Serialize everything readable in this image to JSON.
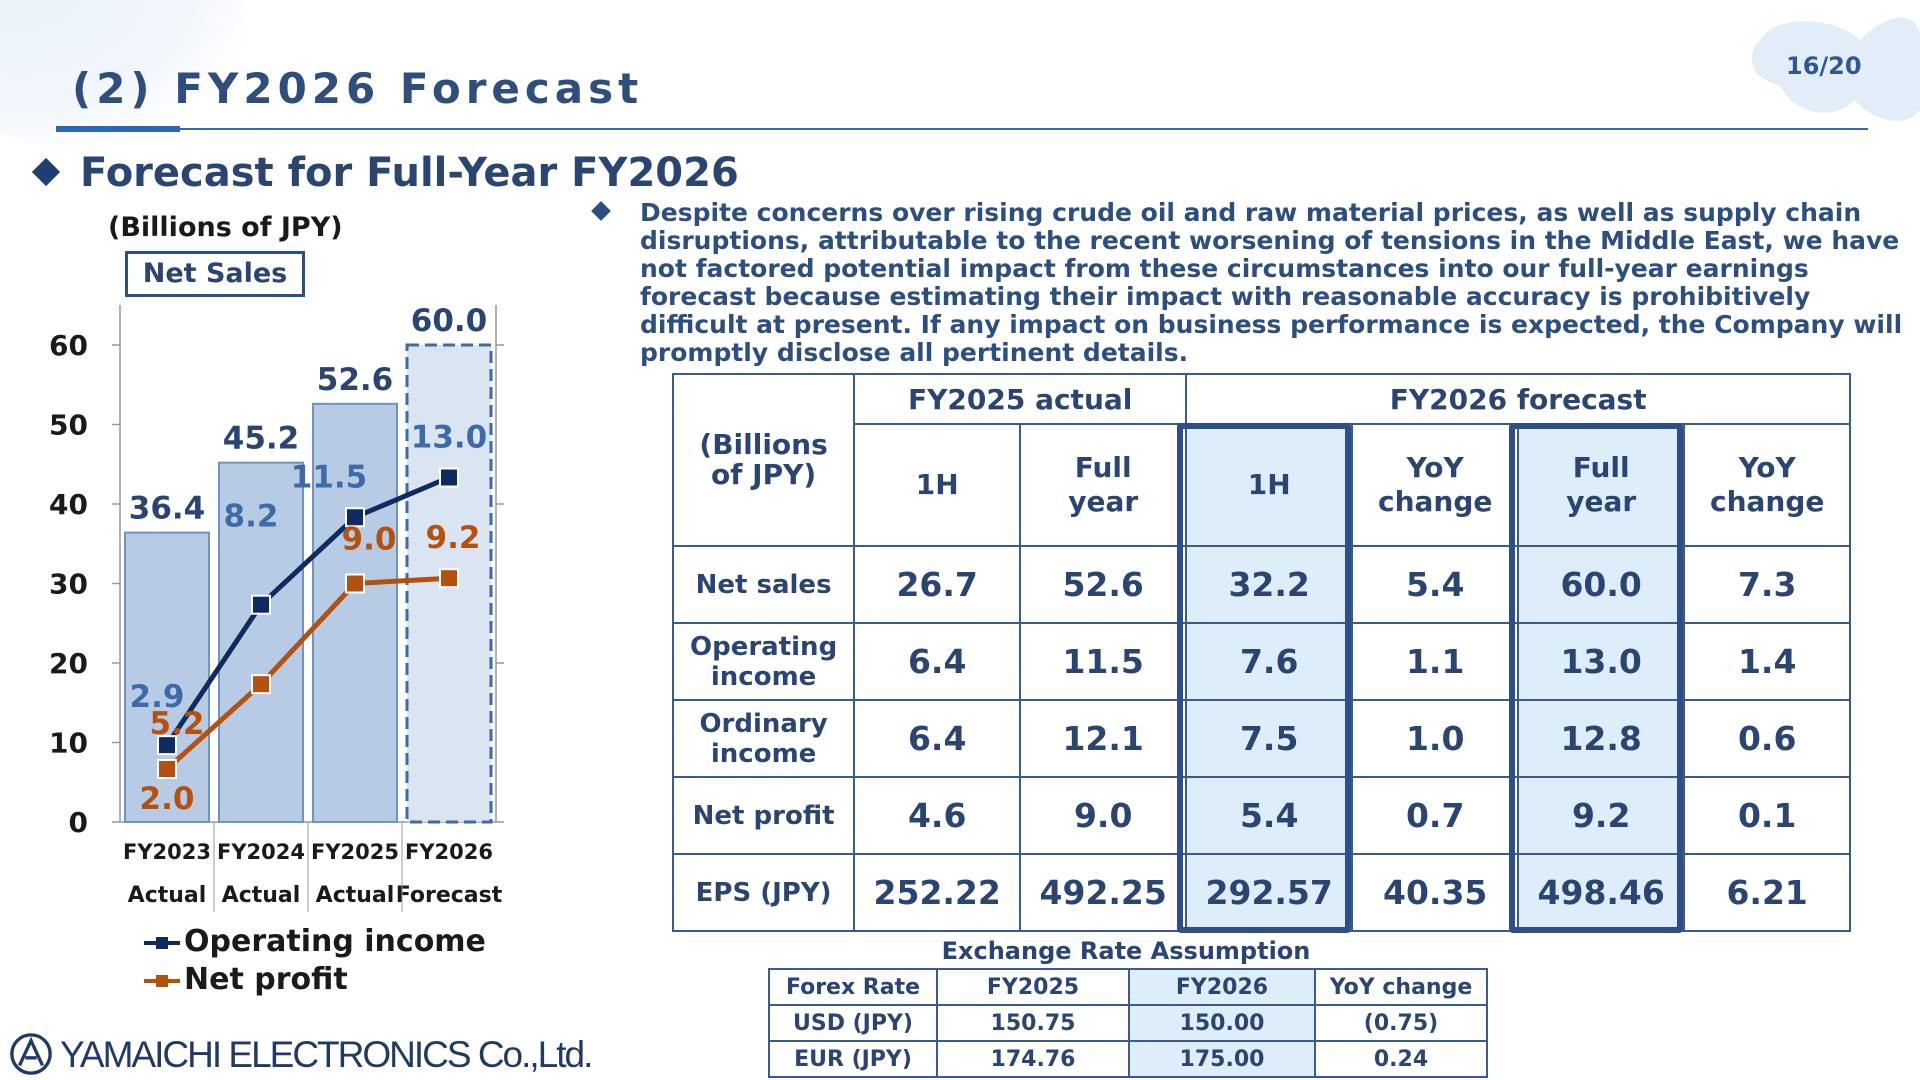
{
  "page": {
    "number": "16/20"
  },
  "header": {
    "title": "(2)  FY2026 Forecast"
  },
  "section": {
    "title": "Forecast for Full-Year FY2026"
  },
  "chart_panel": {
    "units": "(Billions of JPY)",
    "net_sales_label": "Net Sales"
  },
  "chart_data": {
    "type": "bar",
    "categories": [
      "FY2023",
      "FY2024",
      "FY2025",
      "FY2026"
    ],
    "category_sublabels": [
      "Actual",
      "Actual",
      "Actual",
      "Forecast"
    ],
    "ylim": [
      0,
      60
    ],
    "yticks": [
      0,
      10,
      20,
      30,
      40,
      50,
      60
    ],
    "y2lim": [
      0,
      18
    ],
    "y2ticks": [
      0,
      6,
      12,
      18
    ],
    "series": [
      {
        "name": "Net Sales",
        "type": "bar",
        "axis": "left",
        "values": [
          36.4,
          45.2,
          52.6,
          60.0
        ],
        "labels": [
          "36.4",
          "45.2",
          "52.6",
          "60.0"
        ],
        "color": "#b8cbe4",
        "forecast_index": 3
      },
      {
        "name": "Operating income",
        "type": "line",
        "axis": "right",
        "values": [
          2.9,
          8.2,
          11.5,
          13.0
        ],
        "labels": [
          "2.9",
          "8.2",
          "11.5",
          "13.0"
        ],
        "color": "#0f2a5e"
      },
      {
        "name": "Net profit",
        "type": "line",
        "axis": "right",
        "values": [
          2.0,
          5.2,
          9.0,
          9.2
        ],
        "labels": [
          "2.0",
          "5.2",
          "9.0",
          "9.2"
        ],
        "color": "#b5510f"
      }
    ],
    "legend": [
      "-■-Operating income",
      "-■-Net profit"
    ]
  },
  "commentary": "Despite concerns over rising crude oil and raw material prices, as well as supply chain disruptions, attributable to the recent worsening of tensions in the Middle East, we have not factored potential impact from these circumstances into our full-year earnings forecast because estimating their impact with reasonable accuracy is prohibitively difficult at present. If any impact on business performance is expected, the Company will promptly disclose all pertinent details.",
  "forecast_table": {
    "corner": "(Billions of JPY)",
    "group_actual": "FY2025 actual",
    "group_forecast": "FY2026 forecast",
    "columns": [
      "1H",
      "Full year",
      "1H",
      "YoY change",
      "Full year",
      "YoY change"
    ],
    "rows": [
      {
        "label": "Net sales",
        "values": [
          "26.7",
          "52.6",
          "32.2",
          "5.4",
          "60.0",
          "7.3"
        ]
      },
      {
        "label": "Operating income",
        "values": [
          "6.4",
          "11.5",
          "7.6",
          "1.1",
          "13.0",
          "1.4"
        ]
      },
      {
        "label": "Ordinary income",
        "values": [
          "6.4",
          "12.1",
          "7.5",
          "1.0",
          "12.8",
          "0.6"
        ]
      },
      {
        "label": "Net profit",
        "values": [
          "4.6",
          "9.0",
          "5.4",
          "0.7",
          "9.2",
          "0.1"
        ]
      },
      {
        "label": "EPS (JPY)",
        "values": [
          "252.22",
          "492.25",
          "292.57",
          "40.35",
          "498.46",
          "6.21"
        ]
      }
    ]
  },
  "fx_table": {
    "title": "Exchange Rate Assumption",
    "headers": [
      "Forex Rate",
      "FY2025",
      "FY2026",
      "YoY change"
    ],
    "rows": [
      [
        "USD (JPY)",
        "150.75",
        "150.00",
        "(0.75)"
      ],
      [
        "EUR (JPY)",
        "174.76",
        "175.00",
        "0.24"
      ]
    ]
  },
  "brand": {
    "logo_text": "YAMAICHI ELECTRONICS Co.,Ltd."
  },
  "colors": {
    "accent": "#2e4f86",
    "highlight": "#ddeefa",
    "bar": "#b8cbe4",
    "op_income": "#0f2a5e",
    "net_profit": "#b5510f"
  }
}
